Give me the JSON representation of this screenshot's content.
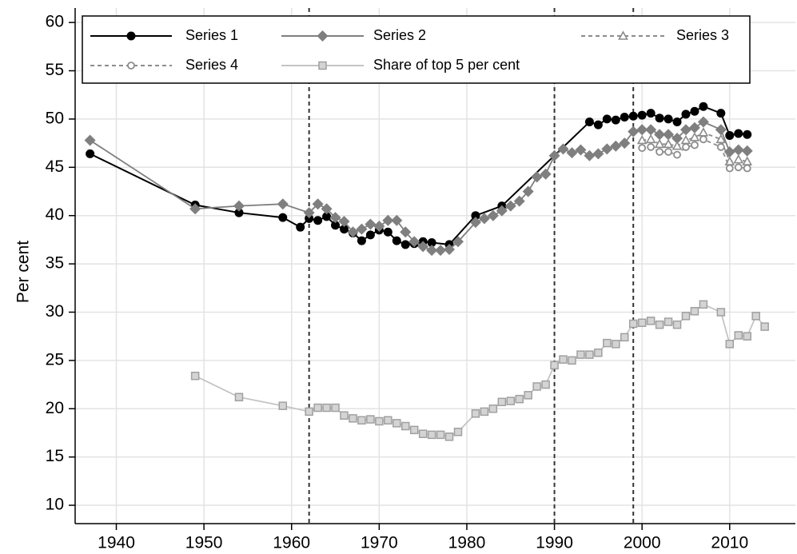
{
  "chart_data": {
    "type": "line",
    "ylabel": "Per cent",
    "xlim": [
      1935.3,
      2017.5
    ],
    "ylim": [
      8.1,
      61.5
    ],
    "xticks": [
      1940,
      1950,
      1960,
      1970,
      1980,
      1990,
      2000,
      2010
    ],
    "yticks": [
      10,
      15,
      20,
      25,
      30,
      35,
      40,
      45,
      50,
      55,
      60
    ],
    "grid": true,
    "vlines": [
      1962,
      1990,
      1999
    ],
    "legend": "top",
    "series": [
      {
        "name": "Series 1",
        "color": "#000000",
        "marker": "circle",
        "dashed": false,
        "x": [
          1937,
          1949,
          1954,
          1959,
          1961,
          1962,
          1963,
          1964,
          1965,
          1966,
          1967,
          1968,
          1969,
          1970,
          1971,
          1972,
          1973,
          1974,
          1975,
          1976,
          1978,
          1981,
          1984,
          1994,
          1995,
          1996,
          1997,
          1998,
          1999,
          2000,
          2001,
          2002,
          2003,
          2004,
          2005,
          2006,
          2007,
          2009,
          2010,
          2011,
          2012
        ],
        "values": [
          46.4,
          41.1,
          40.3,
          39.8,
          38.8,
          39.7,
          39.5,
          39.9,
          39.0,
          38.6,
          38.2,
          37.4,
          38.0,
          38.5,
          38.3,
          37.4,
          37.0,
          37.1,
          37.3,
          37.2,
          37.0,
          40.0,
          41.0,
          49.7,
          49.4,
          50.0,
          49.9,
          50.2,
          50.3,
          50.4,
          50.6,
          50.1,
          50.0,
          49.7,
          50.5,
          50.8,
          51.3,
          50.6,
          48.3,
          48.5,
          48.4
        ]
      },
      {
        "name": "Series 2",
        "color": "#7f7f7f",
        "marker": "diamond",
        "dashed": false,
        "x": [
          1937,
          1949,
          1954,
          1959,
          1962,
          1963,
          1964,
          1965,
          1966,
          1967,
          1968,
          1969,
          1970,
          1971,
          1972,
          1973,
          1974,
          1975,
          1976,
          1977,
          1978,
          1979,
          1981,
          1982,
          1983,
          1984,
          1985,
          1986,
          1987,
          1988,
          1989,
          1990,
          1991,
          1992,
          1993,
          1994,
          1995,
          1996,
          1997,
          1998,
          1999,
          2000,
          2001,
          2002,
          2003,
          2004,
          2005,
          2006,
          2007,
          2009,
          2010,
          2011,
          2012
        ],
        "values": [
          47.8,
          40.7,
          41.0,
          41.2,
          40.3,
          41.2,
          40.7,
          39.8,
          39.4,
          38.3,
          38.6,
          39.1,
          38.9,
          39.5,
          39.5,
          38.3,
          37.3,
          36.8,
          36.4,
          36.4,
          36.5,
          37.3,
          39.3,
          39.7,
          40.0,
          40.5,
          41.0,
          41.5,
          42.5,
          44.0,
          44.3,
          46.2,
          46.9,
          46.5,
          46.8,
          46.2,
          46.4,
          46.9,
          47.2,
          47.5,
          48.7,
          48.9,
          48.9,
          48.4,
          48.4,
          48.0,
          48.9,
          49.1,
          49.7,
          48.9,
          46.6,
          46.8,
          46.7
        ]
      },
      {
        "name": "Series 3",
        "color": "#8c8c8c",
        "marker": "triangle",
        "dashed": true,
        "x": [
          2000,
          2001,
          2002,
          2003,
          2004,
          2005,
          2006,
          2007,
          2009,
          2010,
          2011,
          2012
        ],
        "values": [
          47.8,
          47.9,
          47.4,
          47.4,
          47.2,
          47.8,
          48.1,
          48.6,
          47.9,
          45.6,
          45.8,
          45.6
        ]
      },
      {
        "name": "Series 4",
        "color": "#8c8c8c",
        "marker": "ocircle",
        "dashed": true,
        "x": [
          2000,
          2001,
          2002,
          2003,
          2004,
          2005,
          2006,
          2007,
          2009,
          2010,
          2011,
          2012
        ],
        "values": [
          47.0,
          47.1,
          46.6,
          46.6,
          46.3,
          47.1,
          47.3,
          47.9,
          47.1,
          44.9,
          45.0,
          44.9
        ]
      },
      {
        "name": "Share of top 5 per cent",
        "color": "#c4c4c4",
        "marker": "square",
        "dashed": false,
        "x": [
          1949,
          1954,
          1959,
          1962,
          1963,
          1964,
          1965,
          1966,
          1967,
          1968,
          1969,
          1970,
          1971,
          1972,
          1973,
          1974,
          1975,
          1976,
          1977,
          1978,
          1979,
          1981,
          1982,
          1983,
          1984,
          1985,
          1986,
          1987,
          1988,
          1989,
          1990,
          1991,
          1992,
          1993,
          1994,
          1995,
          1996,
          1997,
          1998,
          1999,
          2000,
          2001,
          2002,
          2003,
          2004,
          2005,
          2006,
          2007,
          2009,
          2010,
          2011,
          2012,
          2013,
          2014
        ],
        "values": [
          23.4,
          21.2,
          20.3,
          19.7,
          20.1,
          20.1,
          20.1,
          19.3,
          19.0,
          18.8,
          18.9,
          18.7,
          18.8,
          18.5,
          18.2,
          17.8,
          17.4,
          17.3,
          17.3,
          17.1,
          17.6,
          19.5,
          19.7,
          20.0,
          20.7,
          20.8,
          21.0,
          21.4,
          22.3,
          22.5,
          24.5,
          25.1,
          25.0,
          25.6,
          25.6,
          25.8,
          26.8,
          26.7,
          27.4,
          28.8,
          28.9,
          29.1,
          28.7,
          29.0,
          28.7,
          29.6,
          30.1,
          30.8,
          30.0,
          26.7,
          27.6,
          27.5,
          29.6,
          28.5
        ]
      }
    ]
  }
}
